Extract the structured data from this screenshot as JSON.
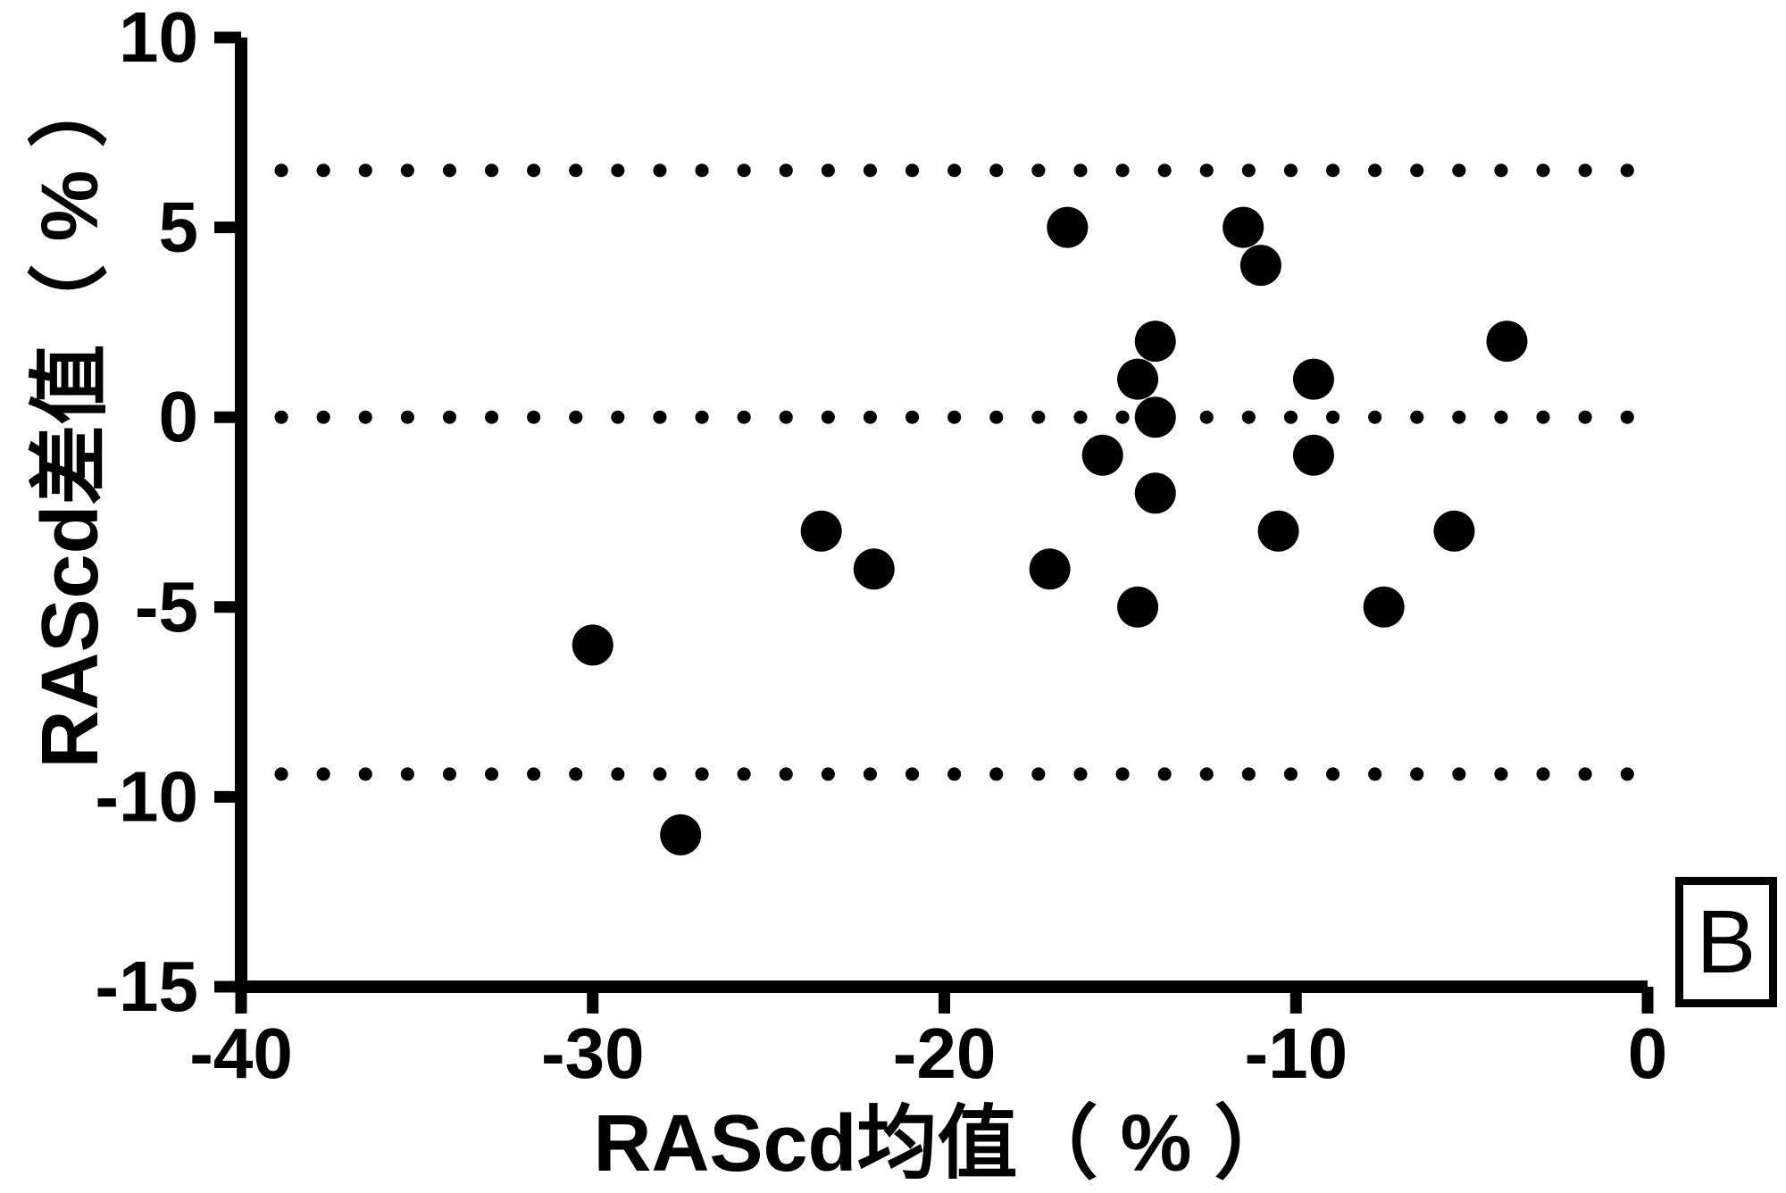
{
  "chart_data": {
    "type": "scatter",
    "title": "",
    "xlabel": "RAScd均值（ % ）",
    "ylabel": "RAScd差值（ % ）",
    "panel_label": "B",
    "xlim": [
      -40,
      0
    ],
    "ylim": [
      -15,
      10
    ],
    "x_ticks": [
      -40,
      -30,
      -20,
      -10,
      0
    ],
    "y_ticks": [
      10,
      5,
      0,
      -5,
      -10,
      -15
    ],
    "grid": false,
    "legend": false,
    "marker_color": "#000000",
    "background_color": "#ffffff",
    "reference_lines": [
      {
        "y": 6.5,
        "style": "dotted"
      },
      {
        "y": 0,
        "style": "dotted"
      },
      {
        "y": -9.4,
        "style": "dotted"
      }
    ],
    "points": [
      {
        "x": -16.5,
        "y": 5
      },
      {
        "x": -11.5,
        "y": 5
      },
      {
        "x": -11,
        "y": 4
      },
      {
        "x": -14,
        "y": 2
      },
      {
        "x": -4,
        "y": 2
      },
      {
        "x": -14.5,
        "y": 1
      },
      {
        "x": -9.5,
        "y": 1
      },
      {
        "x": -14,
        "y": 0
      },
      {
        "x": -15.5,
        "y": -1
      },
      {
        "x": -9.5,
        "y": -1
      },
      {
        "x": -14,
        "y": -2
      },
      {
        "x": -23.5,
        "y": -3
      },
      {
        "x": -10.5,
        "y": -3
      },
      {
        "x": -5.5,
        "y": -3
      },
      {
        "x": -22,
        "y": -4
      },
      {
        "x": -17,
        "y": -4
      },
      {
        "x": -14.5,
        "y": -5
      },
      {
        "x": -7.5,
        "y": -5
      },
      {
        "x": -30,
        "y": -6
      },
      {
        "x": -27.5,
        "y": -11
      }
    ]
  }
}
